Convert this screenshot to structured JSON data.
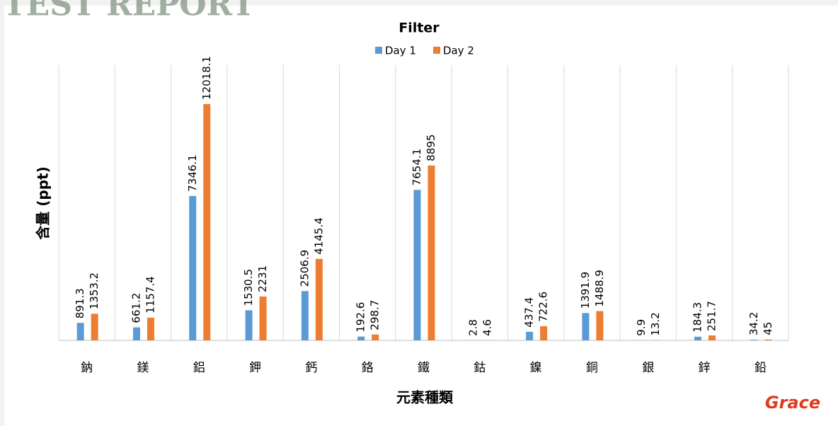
{
  "watermark": "TEST REPORT",
  "logo": "Grace",
  "chart_data": {
    "type": "bar",
    "title": "Filter",
    "y_label": "含量 (ppt)",
    "x_label": "元素種類",
    "categories": [
      "鈉",
      "鎂",
      "鋁",
      "鉀",
      "鈣",
      "鉻",
      "鐵",
      "鈷",
      "鎳",
      "銅",
      "銀",
      "鋅",
      "鉛"
    ],
    "series": [
      {
        "name": "Day 1",
        "color": "#5b9bd5",
        "values": [
          891.3,
          661.2,
          7346.1,
          1530.5,
          2506.9,
          192.6,
          7654.1,
          2.8,
          437.4,
          1391.9,
          9.9,
          184.3,
          34.2
        ]
      },
      {
        "name": "Day 2",
        "color": "#ed7d31",
        "values": [
          1353.2,
          1157.4,
          12018.1,
          2231,
          4145.4,
          298.7,
          8895,
          4.6,
          722.6,
          1488.9,
          13.2,
          251.7,
          45
        ]
      }
    ],
    "ylim": [
      0,
      14000
    ],
    "legend": "top"
  }
}
